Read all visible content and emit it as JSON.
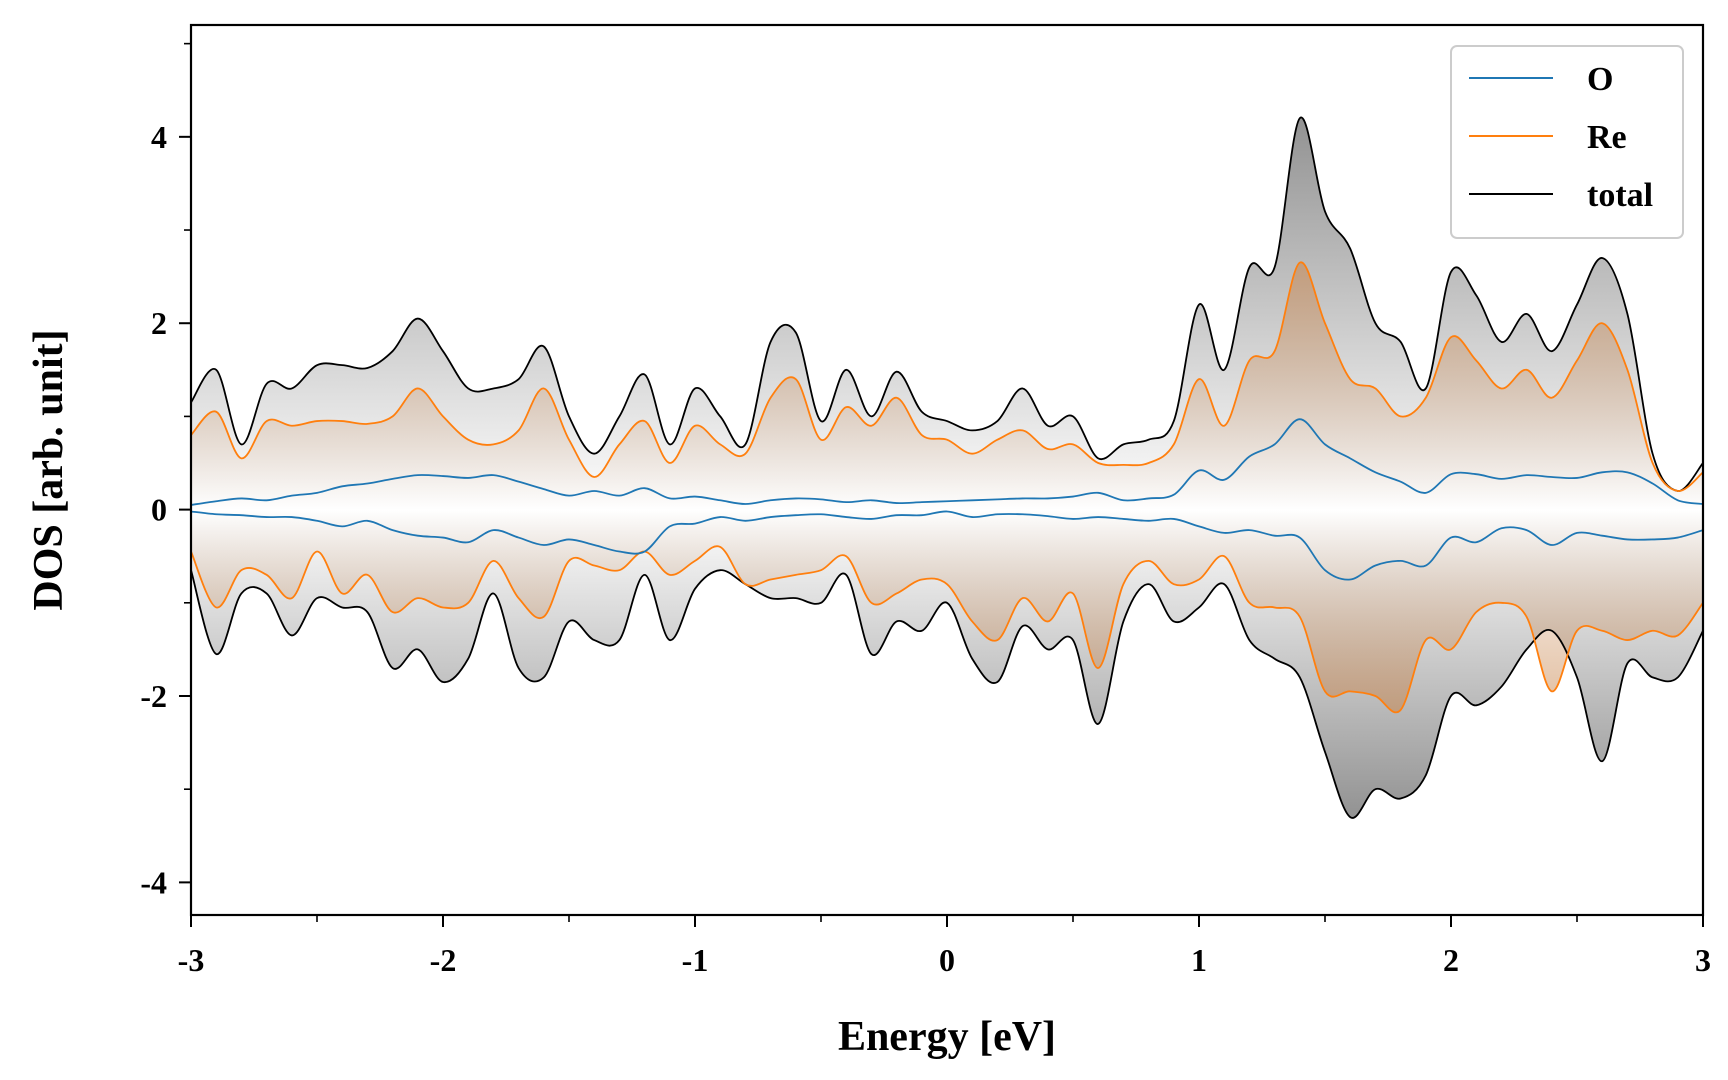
{
  "chart_data": {
    "type": "line",
    "xlabel": "Energy [eV]",
    "ylabel": "DOS [arb. unit]",
    "xlim": [
      -3,
      3
    ],
    "ylim": [
      -4.35,
      5.2
    ],
    "xticks": [
      -3,
      -2,
      -1,
      0,
      1,
      2,
      3
    ],
    "xtick_labels": [
      "-3",
      "-2",
      "-1",
      "0",
      "1",
      "2",
      "3"
    ],
    "yticks": [
      -4,
      -2,
      0,
      2,
      4
    ],
    "ytick_labels": [
      "-4",
      "-2",
      "0",
      "2",
      "4"
    ],
    "grid": false,
    "legend_position": "top-right",
    "spin_resolved": true,
    "colors": {
      "O": "#1f77b4",
      "Re": "#ff7f0e",
      "total": "#000000"
    },
    "fill_colors": {
      "Re": "#c8864e",
      "total": "#7f7f7f"
    },
    "x": [
      -3.0,
      -2.9,
      -2.8,
      -2.7,
      -2.6,
      -2.5,
      -2.4,
      -2.3,
      -2.2,
      -2.1,
      -2.0,
      -1.9,
      -1.8,
      -1.7,
      -1.6,
      -1.5,
      -1.4,
      -1.3,
      -1.2,
      -1.1,
      -1.0,
      -0.9,
      -0.8,
      -0.7,
      -0.6,
      -0.5,
      -0.4,
      -0.3,
      -0.2,
      -0.1,
      0.0,
      0.1,
      0.2,
      0.3,
      0.4,
      0.5,
      0.6,
      0.7,
      0.8,
      0.9,
      1.0,
      1.1,
      1.2,
      1.3,
      1.4,
      1.5,
      1.6,
      1.7,
      1.8,
      1.9,
      2.0,
      2.1,
      2.2,
      2.3,
      2.4,
      2.5,
      2.6,
      2.7,
      2.8,
      2.9,
      3.0
    ],
    "series": [
      {
        "name": "O",
        "spin_up": [
          0.05,
          0.09,
          0.12,
          0.1,
          0.15,
          0.18,
          0.25,
          0.28,
          0.33,
          0.37,
          0.36,
          0.34,
          0.37,
          0.3,
          0.22,
          0.15,
          0.2,
          0.15,
          0.23,
          0.12,
          0.14,
          0.1,
          0.06,
          0.1,
          0.12,
          0.11,
          0.08,
          0.1,
          0.07,
          0.08,
          0.09,
          0.1,
          0.11,
          0.12,
          0.12,
          0.14,
          0.18,
          0.1,
          0.12,
          0.16,
          0.42,
          0.32,
          0.57,
          0.7,
          0.97,
          0.7,
          0.55,
          0.4,
          0.3,
          0.18,
          0.38,
          0.38,
          0.33,
          0.37,
          0.35,
          0.34,
          0.4,
          0.4,
          0.28,
          0.1,
          0.06
        ],
        "spin_down": [
          -0.02,
          -0.05,
          -0.06,
          -0.08,
          -0.08,
          -0.12,
          -0.18,
          -0.12,
          -0.22,
          -0.28,
          -0.3,
          -0.35,
          -0.22,
          -0.3,
          -0.38,
          -0.32,
          -0.38,
          -0.45,
          -0.45,
          -0.18,
          -0.15,
          -0.08,
          -0.12,
          -0.08,
          -0.06,
          -0.05,
          -0.08,
          -0.1,
          -0.06,
          -0.06,
          -0.02,
          -0.08,
          -0.05,
          -0.05,
          -0.07,
          -0.1,
          -0.08,
          -0.1,
          -0.12,
          -0.1,
          -0.18,
          -0.25,
          -0.22,
          -0.28,
          -0.3,
          -0.65,
          -0.75,
          -0.6,
          -0.55,
          -0.6,
          -0.3,
          -0.35,
          -0.2,
          -0.22,
          -0.38,
          -0.25,
          -0.28,
          -0.32,
          -0.32,
          -0.3,
          -0.22
        ]
      },
      {
        "name": "Re",
        "spin_up": [
          0.8,
          1.05,
          0.55,
          0.95,
          0.9,
          0.95,
          0.95,
          0.92,
          1.0,
          1.3,
          1.0,
          0.75,
          0.7,
          0.85,
          1.3,
          0.75,
          0.35,
          0.7,
          0.95,
          0.5,
          0.9,
          0.7,
          0.6,
          1.2,
          1.4,
          0.75,
          1.1,
          0.9,
          1.2,
          0.8,
          0.75,
          0.6,
          0.75,
          0.85,
          0.65,
          0.7,
          0.5,
          0.48,
          0.5,
          0.7,
          1.4,
          0.9,
          1.6,
          1.7,
          2.65,
          2.0,
          1.4,
          1.3,
          1.0,
          1.2,
          1.85,
          1.6,
          1.3,
          1.5,
          1.2,
          1.6,
          2.0,
          1.5,
          0.5,
          0.2,
          0.4
        ],
        "spin_down": [
          -0.45,
          -1.05,
          -0.65,
          -0.7,
          -0.95,
          -0.45,
          -0.9,
          -0.7,
          -1.1,
          -0.95,
          -1.05,
          -1.0,
          -0.55,
          -0.95,
          -1.15,
          -0.55,
          -0.6,
          -0.65,
          -0.45,
          -0.7,
          -0.55,
          -0.4,
          -0.8,
          -0.75,
          -0.7,
          -0.65,
          -0.5,
          -1.0,
          -0.9,
          -0.75,
          -0.8,
          -1.2,
          -1.4,
          -0.95,
          -1.2,
          -0.9,
          -1.7,
          -0.8,
          -0.55,
          -0.8,
          -0.75,
          -0.5,
          -1.0,
          -1.05,
          -1.15,
          -1.95,
          -1.95,
          -2.0,
          -2.15,
          -1.4,
          -1.5,
          -1.1,
          -1.0,
          -1.15,
          -1.95,
          -1.3,
          -1.3,
          -1.4,
          -1.3,
          -1.35,
          -1.0
        ]
      },
      {
        "name": "total",
        "spin_up": [
          1.15,
          1.5,
          0.7,
          1.35,
          1.3,
          1.55,
          1.55,
          1.52,
          1.7,
          2.05,
          1.7,
          1.3,
          1.3,
          1.4,
          1.75,
          1.0,
          0.6,
          1.0,
          1.45,
          0.7,
          1.3,
          1.0,
          0.7,
          1.8,
          1.9,
          0.95,
          1.5,
          1.0,
          1.48,
          1.05,
          0.95,
          0.85,
          0.95,
          1.3,
          0.9,
          1.0,
          0.55,
          0.7,
          0.75,
          0.95,
          2.2,
          1.5,
          2.6,
          2.6,
          4.2,
          3.2,
          2.8,
          2.0,
          1.8,
          1.3,
          2.55,
          2.3,
          1.8,
          2.1,
          1.7,
          2.2,
          2.7,
          2.1,
          0.6,
          0.2,
          0.5
        ],
        "spin_down": [
          -0.65,
          -1.55,
          -0.9,
          -0.9,
          -1.35,
          -0.95,
          -1.05,
          -1.1,
          -1.7,
          -1.5,
          -1.85,
          -1.6,
          -0.9,
          -1.7,
          -1.8,
          -1.2,
          -1.4,
          -1.4,
          -0.7,
          -1.4,
          -0.85,
          -0.65,
          -0.8,
          -0.95,
          -0.95,
          -1.0,
          -0.7,
          -1.55,
          -1.2,
          -1.3,
          -1.0,
          -1.6,
          -1.85,
          -1.25,
          -1.5,
          -1.4,
          -2.3,
          -1.2,
          -0.8,
          -1.2,
          -1.05,
          -0.8,
          -1.4,
          -1.6,
          -1.8,
          -2.6,
          -3.3,
          -3.0,
          -3.1,
          -2.85,
          -2.0,
          -2.1,
          -1.9,
          -1.5,
          -1.3,
          -1.8,
          -2.7,
          -1.65,
          -1.8,
          -1.8,
          -1.3
        ]
      }
    ]
  }
}
